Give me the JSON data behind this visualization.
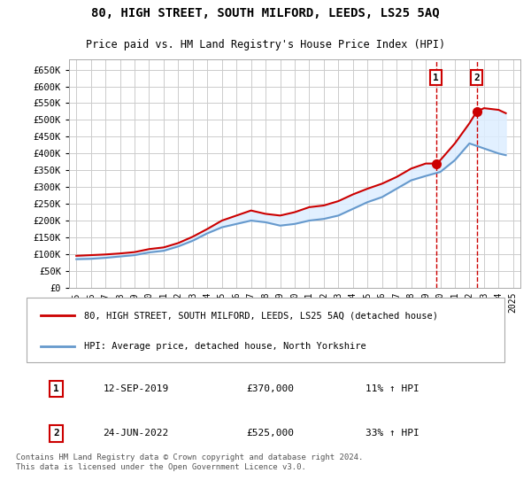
{
  "title": "80, HIGH STREET, SOUTH MILFORD, LEEDS, LS25 5AQ",
  "subtitle": "Price paid vs. HM Land Registry's House Price Index (HPI)",
  "background_color": "#ffffff",
  "plot_bg_color": "#ffffff",
  "grid_color": "#cccccc",
  "red_line_color": "#cc0000",
  "blue_line_color": "#6699cc",
  "shade_color": "#ddeeff",
  "vline_color": "#cc0000",
  "ylim": [
    0,
    680000
  ],
  "yticks": [
    0,
    50000,
    100000,
    150000,
    200000,
    250000,
    300000,
    350000,
    400000,
    450000,
    500000,
    550000,
    600000,
    650000
  ],
  "sale1_year": 2019.7,
  "sale1_price": 370000,
  "sale1_label": "1",
  "sale1_date": "12-SEP-2019",
  "sale1_pct": "11% ↑ HPI",
  "sale2_year": 2022.5,
  "sale2_price": 525000,
  "sale2_label": "2",
  "sale2_date": "24-JUN-2022",
  "sale2_pct": "33% ↑ HPI",
  "legend_label1": "80, HIGH STREET, SOUTH MILFORD, LEEDS, LS25 5AQ (detached house)",
  "legend_label2": "HPI: Average price, detached house, North Yorkshire",
  "footnote": "Contains HM Land Registry data © Crown copyright and database right 2024.\nThis data is licensed under the Open Government Licence v3.0.",
  "red_x": [
    1995,
    1996,
    1997,
    1998,
    1999,
    2000,
    2001,
    2002,
    2003,
    2004,
    2005,
    2006,
    2007,
    2008,
    2009,
    2010,
    2011,
    2012,
    2013,
    2014,
    2015,
    2016,
    2017,
    2018,
    2019,
    2019.7,
    2020,
    2021,
    2022,
    2022.5,
    2023,
    2024,
    2024.5
  ],
  "red_y": [
    95000,
    97000,
    99000,
    102000,
    106000,
    115000,
    120000,
    133000,
    152000,
    175000,
    200000,
    215000,
    230000,
    220000,
    215000,
    225000,
    240000,
    245000,
    258000,
    278000,
    295000,
    310000,
    330000,
    355000,
    370000,
    370000,
    380000,
    430000,
    490000,
    525000,
    535000,
    530000,
    520000
  ],
  "blue_x": [
    1995,
    1996,
    1997,
    1998,
    1999,
    2000,
    2001,
    2002,
    2003,
    2004,
    2005,
    2006,
    2007,
    2008,
    2009,
    2010,
    2011,
    2012,
    2013,
    2014,
    2015,
    2016,
    2017,
    2018,
    2019,
    2020,
    2021,
    2022,
    2023,
    2024,
    2024.5
  ],
  "blue_y": [
    85000,
    86000,
    89000,
    93000,
    97000,
    105000,
    110000,
    123000,
    140000,
    162000,
    180000,
    190000,
    200000,
    195000,
    185000,
    190000,
    200000,
    205000,
    215000,
    235000,
    255000,
    270000,
    295000,
    320000,
    333000,
    345000,
    380000,
    430000,
    415000,
    400000,
    395000
  ]
}
